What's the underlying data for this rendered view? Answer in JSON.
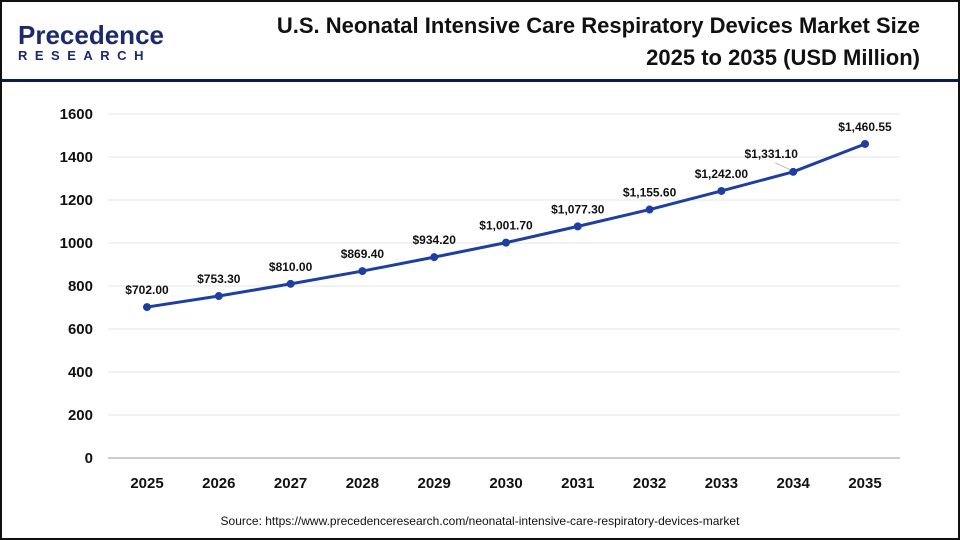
{
  "logo": {
    "line1": "Precedence",
    "line2": "RESEARCH"
  },
  "chart_data": {
    "type": "line",
    "title": "U.S. Neonatal Intensive Care Respiratory Devices Market Size 2025 to 2035 (USD Million)",
    "title_line1": "U.S. Neonatal Intensive Care Respiratory Devices Market Size",
    "title_line2": "2025 to 2035 (USD Million)",
    "categories": [
      "2025",
      "2026",
      "2027",
      "2028",
      "2029",
      "2030",
      "2031",
      "2032",
      "2033",
      "2034",
      "2035"
    ],
    "values": [
      702.0,
      753.3,
      810.0,
      869.4,
      934.2,
      1001.7,
      1077.3,
      1155.6,
      1242.0,
      1331.1,
      1460.55
    ],
    "data_labels": [
      "$702.00",
      "$753.30",
      "$810.00",
      "$869.40",
      "$934.20",
      "$1,001.70",
      "$1,077.30",
      "$1,155.60",
      "$1,242.00",
      "$1,331.10",
      "$1,460.55"
    ],
    "yticks": [
      "0",
      "200",
      "400",
      "600",
      "800",
      "1000",
      "1200",
      "1400",
      "1600"
    ],
    "ylim": [
      0,
      1600
    ],
    "grid": true,
    "line_color": "#1f3fa0"
  },
  "source": "Source: https://www.precedenceresearch.com/neonatal-intensive-care-respiratory-devices-market"
}
